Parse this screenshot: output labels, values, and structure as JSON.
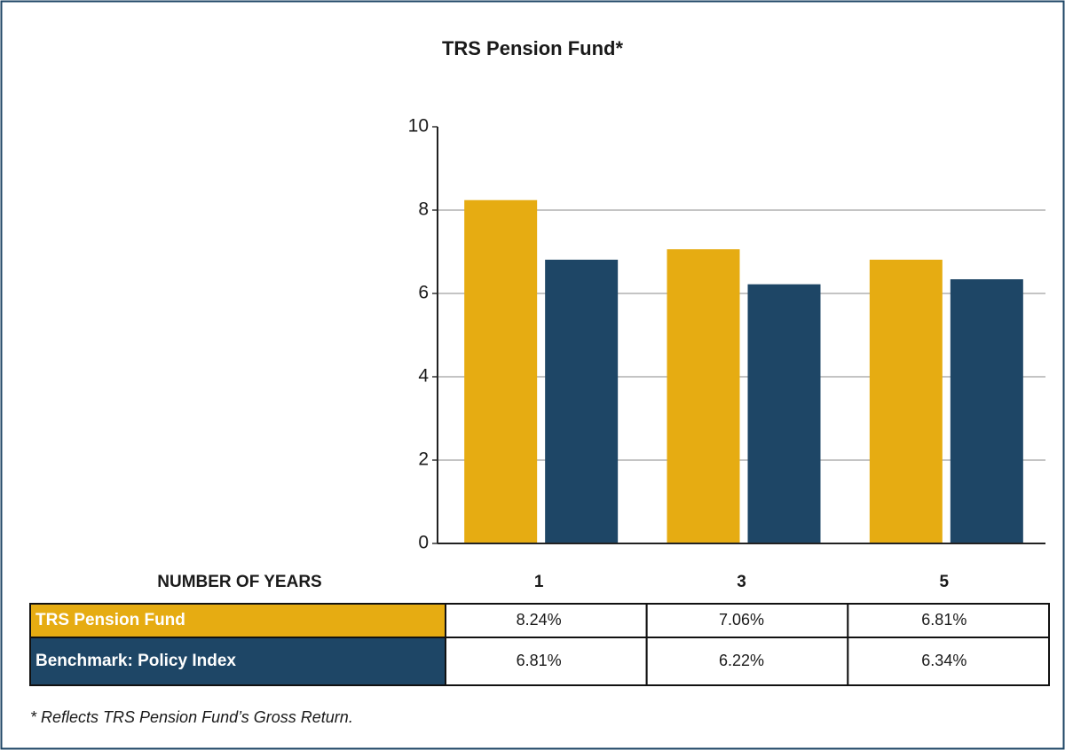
{
  "chart_data": {
    "type": "bar",
    "title": "TRS Pension Fund*",
    "x_label": "NUMBER OF YEARS",
    "categories": [
      "1",
      "3",
      "5"
    ],
    "series": [
      {
        "name": "TRS Pension Fund",
        "color": "#e6ac12",
        "values": [
          8.24,
          7.06,
          6.81
        ],
        "value_labels": [
          "8.24%",
          "7.06%",
          "6.81%"
        ]
      },
      {
        "name": "Benchmark: Policy Index",
        "color": "#1e4666",
        "values": [
          6.81,
          6.22,
          6.34
        ],
        "value_labels": [
          "6.81%",
          "6.22%",
          "6.34%"
        ]
      }
    ],
    "ylim": [
      0,
      10
    ],
    "yticks": [
      0,
      2,
      4,
      6,
      8,
      10
    ],
    "grid": true,
    "footnote": "* Reflects TRS Pension Fund’s Gross Return."
  }
}
